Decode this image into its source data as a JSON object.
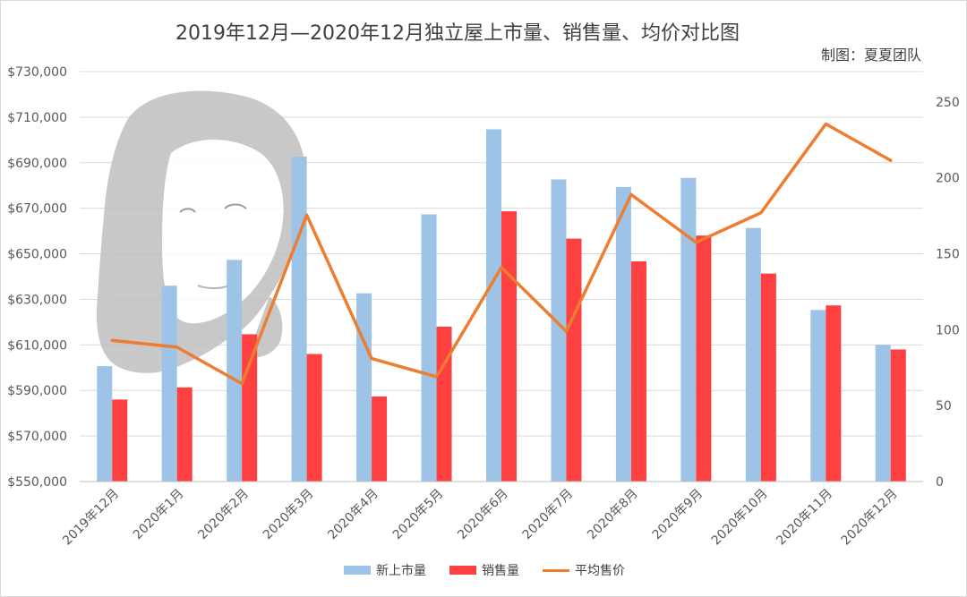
{
  "title": "2019年12月—2020年12月独立屋上市量、销售量、均价对比图",
  "credit": "制图：夏夏团队",
  "colors": {
    "new_listings": "#9dc3e6",
    "sales": "#ff4040",
    "avg_price": "#ed7d31",
    "grid": "#d9d9d9",
    "axis_text": "#595959"
  },
  "chart_data": {
    "type": "bar",
    "categories": [
      "2019年12月",
      "2020年1月",
      "2020年2月",
      "2020年3月",
      "2020年4月",
      "2020年5月",
      "2020年6月",
      "2020年7月",
      "2020年8月",
      "2020年9月",
      "2020年10月",
      "2020年11月",
      "2020年12月"
    ],
    "series": [
      {
        "name": "新上市量",
        "type": "bar",
        "axis": "right",
        "values": [
          76,
          129,
          146,
          214,
          124,
          176,
          232,
          199,
          194,
          200,
          167,
          113,
          90
        ]
      },
      {
        "name": "销售量",
        "type": "bar",
        "axis": "right",
        "values": [
          54,
          62,
          97,
          84,
          56,
          102,
          178,
          160,
          145,
          162,
          137,
          116,
          87
        ]
      },
      {
        "name": "平均售价",
        "type": "line",
        "axis": "left",
        "values": [
          612000,
          609000,
          593000,
          667000,
          604000,
          596000,
          644000,
          616000,
          676000,
          655000,
          668000,
          707000,
          691000
        ]
      }
    ],
    "left_axis": {
      "min": 550000,
      "max": 730000,
      "step": 20000,
      "tick_labels": [
        "$550,000",
        "$570,000",
        "$590,000",
        "$610,000",
        "$630,000",
        "$650,000",
        "$670,000",
        "$690,000",
        "$710,000",
        "$730,000"
      ]
    },
    "right_axis": {
      "min": 0,
      "max": 270,
      "step": 50,
      "tick_labels": [
        "0",
        "50",
        "100",
        "150",
        "200",
        "250"
      ]
    },
    "grid": true,
    "legend_position": "bottom"
  },
  "legend": [
    {
      "label": "新上市量",
      "kind": "bar",
      "color": "#9dc3e6"
    },
    {
      "label": "销售量",
      "kind": "bar",
      "color": "#ff4040"
    },
    {
      "label": "平均售价",
      "kind": "line",
      "color": "#ed7d31"
    }
  ]
}
